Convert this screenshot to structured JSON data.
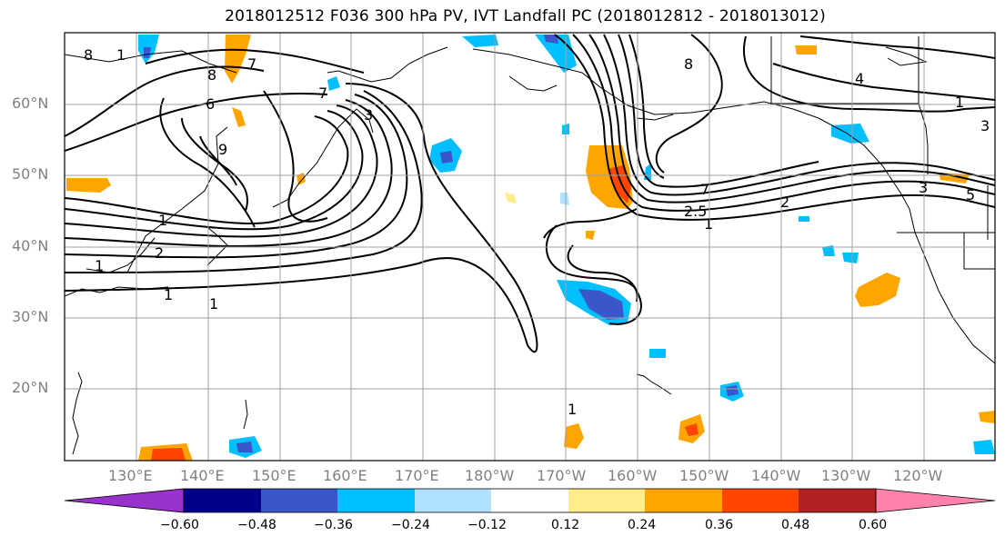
{
  "title": "2018012512 F036 300 hPa PV, IVT Landfall PC (2018012812 - 2018013012)",
  "lat_labels": [
    "60°N",
    "50°N",
    "40°N",
    "30°N",
    "20°N"
  ],
  "lon_labels": [
    "130°E",
    "140°E",
    "150°E",
    "160°E",
    "170°E",
    "180°W",
    "170°W",
    "160°W",
    "150°W",
    "140°W",
    "130°W",
    "120°W"
  ],
  "colorbar": {
    "tick_labels": [
      "−0.60",
      "−0.48",
      "−0.36",
      "−0.24",
      "−0.12",
      "0.12",
      "0.24",
      "0.36",
      "0.48",
      "0.60"
    ],
    "colors": [
      "#9932cc",
      "#00008b",
      "#3a56c8",
      "#00bfff",
      "#b0e2ff",
      "#ffffff",
      "#ffec8b",
      "#ffa500",
      "#ff4500",
      "#b22222",
      "#ff82ab"
    ]
  },
  "contour_labels": [
    "8",
    "1",
    "8",
    "7",
    "3",
    "6",
    "1",
    "2",
    "1",
    "9",
    "8",
    "1",
    "1",
    "7",
    "7",
    "2",
    "4",
    "1",
    "5",
    "3",
    "1",
    "3",
    "2.5",
    "1"
  ]
}
